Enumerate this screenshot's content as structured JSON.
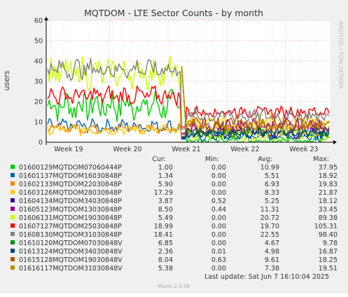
{
  "chart_data": {
    "type": "line",
    "title": "MQTDOM - LTE Sector Counts - by month",
    "ylabel": "users",
    "watermark": "RRDTOOL / TOBI OETIKER",
    "ylim": [
      0,
      60
    ],
    "yticks": [
      0,
      10,
      20,
      30,
      40,
      50,
      60
    ],
    "xticks": [
      "Week 19",
      "Week 20",
      "Week 21",
      "Week 22",
      "Week 23"
    ],
    "legend_headers": {
      "cur": "Cur:",
      "min": "Min:",
      "avg": "Avg:",
      "max": "Max:"
    },
    "series": [
      {
        "name": "01600129MQTDOM07060444P",
        "color": "#00cc00",
        "cur": "1.00",
        "min": "0.00",
        "avg": "10.99",
        "max": "37.95",
        "pre": 18,
        "pre_var": 6,
        "post": 1,
        "post_var": 1.5
      },
      {
        "name": "01601137MQTDOM16030848P",
        "color": "#0066b3",
        "cur": "1.34",
        "min": "0.00",
        "avg": "5.51",
        "max": "18.92",
        "pre": 8,
        "pre_var": 2.5,
        "post": 3,
        "post_var": 2
      },
      {
        "name": "01602133MQTDOM22030848P",
        "color": "#ff8000",
        "cur": "5.90",
        "min": "0.00",
        "avg": "6.93",
        "max": "19.83",
        "pre": 7,
        "pre_var": 2,
        "post": 6,
        "post_var": 2.5
      },
      {
        "name": "01603126MQTDOM28030848P",
        "color": "#ffcc00",
        "cur": "17.29",
        "min": "0.00",
        "avg": "8.33",
        "max": "21.87",
        "pre": 6,
        "pre_var": 2,
        "post": 10,
        "post_var": 3
      },
      {
        "name": "01604134MQTDOM34030848P",
        "color": "#330099",
        "cur": "3.87",
        "min": "0.52",
        "avg": "5.25",
        "max": "18.12",
        "pre": 0,
        "pre_var": 0,
        "post": 5,
        "post_var": 2.5
      },
      {
        "name": "01605123MQTDOM13030848P",
        "color": "#990099",
        "cur": "8.50",
        "min": "0.44",
        "avg": "11.31",
        "max": "33.45",
        "pre": 0,
        "pre_var": 0,
        "post": 8,
        "post_var": 3
      },
      {
        "name": "01606131MQTDOM19030848P",
        "color": "#ccff00",
        "cur": "5.49",
        "min": "0.00",
        "avg": "20.72",
        "max": "89.38",
        "pre": 34,
        "pre_var": 6,
        "post": 3,
        "post_var": 2
      },
      {
        "name": "01607127MQTDOM25030848P",
        "color": "#ff0000",
        "cur": "18.99",
        "min": "0.00",
        "avg": "19.70",
        "max": "105.31",
        "pre": 23,
        "pre_var": 3.5,
        "post": 15,
        "post_var": 2.5
      },
      {
        "name": "01608130MQTDOM31030848P",
        "color": "#808080",
        "cur": "18.41",
        "min": "0.00",
        "avg": "22.55",
        "max": "98.40",
        "pre": 36,
        "pre_var": 4,
        "post": 13,
        "post_var": 3
      },
      {
        "name": "01610120MQTDOM07030848V",
        "color": "#008f00",
        "cur": "6.85",
        "min": "0.00",
        "avg": "4.67",
        "max": "9.78",
        "pre": 0,
        "pre_var": 0,
        "post": 5,
        "post_var": 2
      },
      {
        "name": "01613124MQTDOM34030848V",
        "color": "#00487d",
        "cur": "2.36",
        "min": "0.01",
        "avg": "4.98",
        "max": "16.87",
        "pre": 0,
        "pre_var": 0,
        "post": 4,
        "post_var": 2
      },
      {
        "name": "01615128MQTDOM19030848V",
        "color": "#b35a00",
        "cur": "8.04",
        "min": "0.63",
        "avg": "9.61",
        "max": "18.25",
        "pre": 0,
        "pre_var": 0,
        "post": 9,
        "post_var": 2.5
      },
      {
        "name": "01616117MQTDOM31030848V",
        "color": "#b38f00",
        "cur": "5.38",
        "min": "0.00",
        "avg": "7.38",
        "max": "19.51",
        "pre": 0,
        "pre_var": 0,
        "post": 8,
        "post_var": 2.5
      }
    ],
    "footer_update": "Last update:  Sat Jun  7 16:10:04 2025",
    "footer_version": "Munin 2.0.56"
  }
}
